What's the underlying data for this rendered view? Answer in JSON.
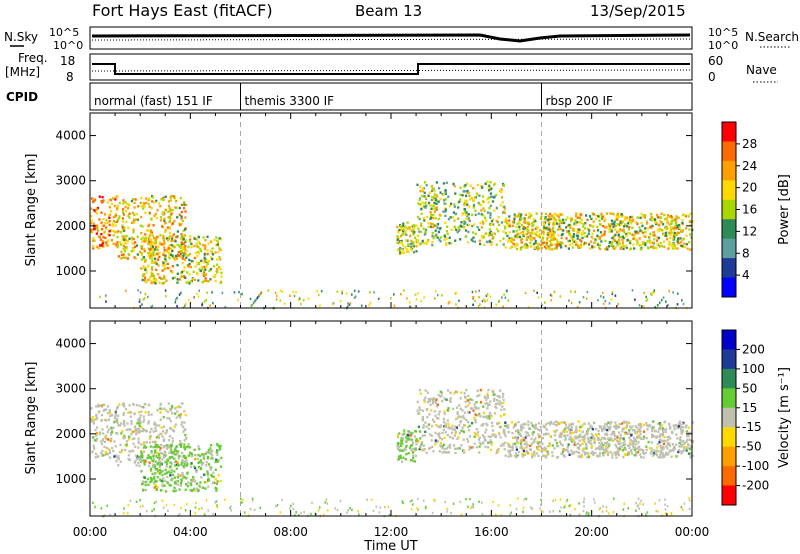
{
  "header": {
    "station": "Fort Hays East (fitACF)",
    "beam": "Beam 13",
    "date": "13/Sep/2015"
  },
  "top_panels": {
    "nsky_label": "N.Sky",
    "nsearch_label": "N.Search",
    "noise_ticks": [
      "10^5",
      "10^0"
    ],
    "freq_label": "Freq.",
    "freq_unit": "[MHz]",
    "freq_ticks": [
      "18",
      "8"
    ],
    "nave_label": "Nave",
    "nave_ticks": [
      "60",
      "0"
    ],
    "cpid_label": "CPID",
    "cpid_segments": [
      {
        "label": "normal (fast) 151 IF",
        "start_h": 0,
        "end_h": 6
      },
      {
        "label": "themis 3300 IF",
        "start_h": 6,
        "end_h": 18
      },
      {
        "label": "rbsp 200 IF",
        "start_h": 18,
        "end_h": 24
      }
    ]
  },
  "power_colorbar": {
    "label": "Power [dB]",
    "ticks": [
      "28",
      "24",
      "20",
      "16",
      "12",
      "8",
      "4"
    ],
    "colors": [
      "#ff0000",
      "#ff6a00",
      "#ffa000",
      "#ffd800",
      "#a8d800",
      "#2e8b57",
      "#5f9ea0",
      "#1e3c96",
      "#0000ff"
    ]
  },
  "velocity_colorbar": {
    "label": "Velocity [m s⁻¹]",
    "ticks": [
      "200",
      "100",
      "50",
      "15",
      "-15",
      "-50",
      "-100",
      "-200"
    ],
    "colors": [
      "#0000c8",
      "#1e3c96",
      "#2e8b57",
      "#66cc33",
      "#c0c0b0",
      "#ffd800",
      "#ffa000",
      "#ff6a00",
      "#ff0000"
    ]
  },
  "axes": {
    "ylabel": "Slant Range [km]",
    "yticks": [
      "4000",
      "3000",
      "2000",
      "1000"
    ],
    "xticks": [
      "00:00",
      "04:00",
      "08:00",
      "12:00",
      "16:00",
      "20:00",
      "00:00"
    ],
    "xlabel": "Time UT"
  },
  "chart_data": [
    {
      "type": "heatmap",
      "name_panel": "power",
      "xlabel": "Time UT",
      "ylabel": "Slant Range [km]",
      "xlim_h": [
        0,
        24
      ],
      "ylim_km": [
        180,
        4500
      ],
      "value_label": "Power [dB]",
      "value_range": [
        0,
        30
      ],
      "regions": [
        {
          "t": [
            0.0,
            1.0
          ],
          "r": [
            1500,
            2700
          ],
          "v": 24
        },
        {
          "t": [
            1.0,
            3.8
          ],
          "r": [
            1300,
            2700
          ],
          "v": 20
        },
        {
          "t": [
            2.0,
            5.2
          ],
          "r": [
            750,
            1800
          ],
          "v": 18
        },
        {
          "t": [
            12.2,
            13.0
          ],
          "r": [
            1400,
            2100
          ],
          "v": 16
        },
        {
          "t": [
            13.0,
            16.5
          ],
          "r": [
            1600,
            3000
          ],
          "v": 14
        },
        {
          "t": [
            16.5,
            24.0
          ],
          "r": [
            1500,
            2300
          ],
          "v": 18
        }
      ]
    },
    {
      "type": "heatmap",
      "name_panel": "velocity",
      "xlabel": "Time UT",
      "ylabel": "Slant Range [km]",
      "xlim_h": [
        0,
        24
      ],
      "ylim_km": [
        180,
        4500
      ],
      "value_label": "Velocity [m s⁻¹]",
      "value_range": [
        -200,
        200
      ],
      "regions": [
        {
          "t": [
            0.0,
            1.0
          ],
          "r": [
            1500,
            2700
          ],
          "v": 0
        },
        {
          "t": [
            1.0,
            3.8
          ],
          "r": [
            1300,
            2700
          ],
          "v": 0
        },
        {
          "t": [
            2.0,
            5.2
          ],
          "r": [
            750,
            1800
          ],
          "v": 40
        },
        {
          "t": [
            12.2,
            13.0
          ],
          "r": [
            1400,
            2100
          ],
          "v": 30
        },
        {
          "t": [
            13.0,
            16.5
          ],
          "r": [
            1600,
            3000
          ],
          "v": 0
        },
        {
          "t": [
            16.5,
            24.0
          ],
          "r": [
            1500,
            2300
          ],
          "v": 0
        }
      ]
    }
  ]
}
